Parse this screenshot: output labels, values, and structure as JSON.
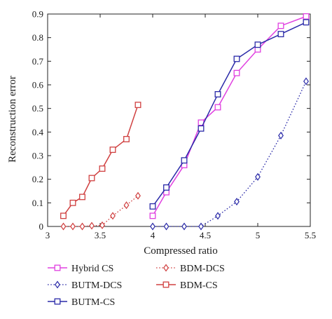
{
  "chart_data": {
    "type": "line",
    "title": "",
    "xlabel": "Compressed ratio",
    "ylabel": "Reconstruction error",
    "xlim": [
      3,
      5.5
    ],
    "ylim": [
      0,
      0.9
    ],
    "xticks": [
      3,
      3.5,
      4,
      4.5,
      5,
      5.5
    ],
    "xtick_labels": [
      "3",
      "3.5",
      "4",
      "4.5",
      "5",
      "5.5"
    ],
    "yticks": [
      0,
      0.1,
      0.2,
      0.3,
      0.4,
      0.5,
      0.6,
      0.7,
      0.8,
      0.9
    ],
    "ytick_labels": [
      "0",
      "0.1",
      "0.2",
      "0.3",
      "0.4",
      "0.5",
      "0.6",
      "0.7",
      "0.8",
      "0.9"
    ],
    "grid": false,
    "legend_position": "below",
    "series": [
      {
        "name": "Hybrid CS",
        "color": "#e040e0",
        "marker": "square",
        "line": "solid",
        "x": [
          4.0,
          4.13,
          4.3,
          4.46,
          4.62,
          4.8,
          5.0,
          5.22,
          5.46
        ],
        "y": [
          0.045,
          0.145,
          0.26,
          0.44,
          0.505,
          0.65,
          0.75,
          0.85,
          0.89
        ]
      },
      {
        "name": "BUTM-DCS",
        "color": "#2a2aa8",
        "marker": "diamond",
        "line": "dotted",
        "x": [
          4.0,
          4.13,
          4.3,
          4.46,
          4.62,
          4.8,
          5.0,
          5.22,
          5.46
        ],
        "y": [
          0.0,
          0.0,
          0.0,
          0.0,
          0.045,
          0.105,
          0.21,
          0.385,
          0.615
        ]
      },
      {
        "name": "BUTM-CS",
        "color": "#2a2aa8",
        "marker": "square",
        "line": "solid",
        "x": [
          4.0,
          4.13,
          4.3,
          4.46,
          4.62,
          4.8,
          5.0,
          5.22,
          5.46
        ],
        "y": [
          0.085,
          0.165,
          0.28,
          0.415,
          0.56,
          0.71,
          0.77,
          0.815,
          0.865
        ]
      },
      {
        "name": "BDM-DCS",
        "color": "#d04040",
        "marker": "diamond",
        "line": "dotted",
        "x": [
          3.15,
          3.24,
          3.33,
          3.42,
          3.52,
          3.62,
          3.75,
          3.86
        ],
        "y": [
          0.0,
          0.0,
          0.0,
          0.003,
          0.005,
          0.045,
          0.09,
          0.13
        ]
      },
      {
        "name": "BDM-CS",
        "color": "#d04040",
        "marker": "square",
        "line": "solid",
        "x": [
          3.15,
          3.24,
          3.33,
          3.42,
          3.52,
          3.62,
          3.75,
          3.86
        ],
        "y": [
          0.045,
          0.1,
          0.125,
          0.205,
          0.245,
          0.325,
          0.37,
          0.515
        ]
      }
    ],
    "legend_order": [
      0,
      1,
      2,
      3,
      4
    ]
  }
}
